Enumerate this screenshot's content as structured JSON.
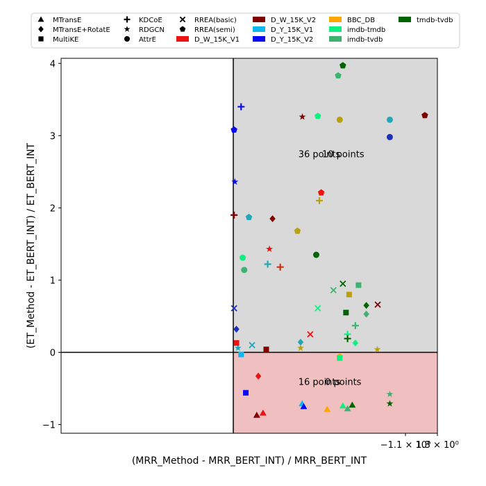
{
  "chart_data": {
    "type": "scatter",
    "title": "",
    "xlabel": "(MRR_Method - MRR_BERT_INT) / MRR_BERT_INT",
    "ylabel": "(ET_Method - ET_BERT_INT) / ET_BERT_INT",
    "xscale": "symlog",
    "xlim": [
      -1.1,
      1.3
    ],
    "ylim": [
      -1.12,
      4.07
    ],
    "x_ticks": [
      {
        "value": -1.1,
        "label": "−1.1 × 10⁰"
      },
      {
        "value": 1.3,
        "label": "1.3 × 10⁰"
      }
    ],
    "y_ticks": [
      {
        "value": -1,
        "label": "−1"
      },
      {
        "value": 0,
        "label": "0"
      },
      {
        "value": 1,
        "label": "1"
      },
      {
        "value": 2,
        "label": "2"
      },
      {
        "value": 3,
        "label": "3"
      },
      {
        "value": 4,
        "label": "4"
      }
    ],
    "grid": false,
    "legend_position": "top (above plot)",
    "quadrants": [
      {
        "label": "36 points",
        "color": "#c1e3c1",
        "x_range": [
          -1.1,
          0
        ],
        "y_range": [
          0,
          4.07
        ],
        "label_at": [
          -0.55,
          2.7
        ]
      },
      {
        "label": "10 points",
        "color": "#d9d9d9",
        "x_range": [
          0,
          1.3
        ],
        "y_range": [
          0,
          4.07
        ],
        "label_at": [
          0.7,
          2.7
        ]
      },
      {
        "label": "16 points",
        "color": "#d9d9d9",
        "x_range": [
          -1.1,
          0
        ],
        "y_range": [
          -1.12,
          0
        ],
        "label_at": [
          -0.55,
          -0.45
        ]
      },
      {
        "label": "0 points",
        "color": "#f0c0c0",
        "x_range": [
          0,
          1.3
        ],
        "y_range": [
          -1.12,
          0
        ],
        "label_at": [
          0.7,
          -0.45
        ]
      }
    ],
    "legend": {
      "markers": [
        {
          "name": "MTransE",
          "marker": "triangle"
        },
        {
          "name": "MTransE+RotatE",
          "marker": "diamond"
        },
        {
          "name": "MultiKE",
          "marker": "square"
        },
        {
          "name": "KDCoE",
          "marker": "plus"
        },
        {
          "name": "RDGCN",
          "marker": "star"
        },
        {
          "name": "AttrE",
          "marker": "circle"
        },
        {
          "name": "RREA(basic)",
          "marker": "x"
        },
        {
          "name": "RREA(semi)",
          "marker": "pentagon"
        }
      ],
      "datasets": [
        {
          "name": "D_W_15K_V1",
          "color": "#ee1111"
        },
        {
          "name": "D_W_15K_V2",
          "color": "#800000"
        },
        {
          "name": "D_Y_15K_V1",
          "color": "#11b5f0"
        },
        {
          "name": "D_Y_15K_V2",
          "color": "#0a0af0"
        },
        {
          "name": "BBC_DB",
          "color": "#ffa500"
        },
        {
          "name": "imdb-tmdb",
          "color": "#10f080"
        },
        {
          "name": "imdb-tvdb",
          "color": "#3cb371"
        },
        {
          "name": "tmdb-tvdb",
          "color": "#006400"
        }
      ]
    },
    "points": [
      {
        "x": -1.0,
        "y": 3.22,
        "marker": "circle",
        "color": "#20a8b8"
      },
      {
        "x": -1.0,
        "y": 2.98,
        "marker": "circle",
        "color": "#1a30b8"
      },
      {
        "x": -0.7,
        "y": 3.97,
        "marker": "pentagon",
        "color": "#006400"
      },
      {
        "x": -0.67,
        "y": 3.83,
        "marker": "pentagon",
        "color": "#3cb371"
      },
      {
        "x": -0.68,
        "y": 3.22,
        "marker": "circle",
        "color": "#b8a010"
      },
      {
        "x": -0.54,
        "y": 3.27,
        "marker": "pentagon",
        "color": "#10f080"
      },
      {
        "x": -0.55,
        "y": 2.1,
        "marker": "plus",
        "color": "#b8a010"
      },
      {
        "x": -0.41,
        "y": 1.68,
        "marker": "pentagon",
        "color": "#b8a010"
      },
      {
        "x": -0.53,
        "y": 1.35,
        "marker": "circle",
        "color": "#006400"
      },
      {
        "x": -0.3,
        "y": 1.18,
        "marker": "plus",
        "color": "#c83010"
      },
      {
        "x": -0.22,
        "y": 1.22,
        "marker": "plus",
        "color": "#20a8b8"
      },
      {
        "x": -0.1,
        "y": 1.87,
        "marker": "pentagon",
        "color": "#20a8b8"
      },
      {
        "x": -0.06,
        "y": 1.31,
        "marker": "circle",
        "color": "#10f080"
      },
      {
        "x": -0.07,
        "y": 1.14,
        "marker": "circle",
        "color": "#3cb371"
      },
      {
        "x": -0.05,
        "y": 3.4,
        "marker": "plus",
        "color": "#0a0af0"
      },
      {
        "x": -0.005,
        "y": 3.08,
        "marker": "pentagon",
        "color": "#0a0af0"
      },
      {
        "x": -0.01,
        "y": 2.36,
        "marker": "star",
        "color": "#0a0af0"
      },
      {
        "x": 0.005,
        "y": 1.9,
        "marker": "plus",
        "color": "#800000"
      },
      {
        "x": -0.8,
        "y": 0.93,
        "marker": "square",
        "color": "#3cb371"
      },
      {
        "x": -0.74,
        "y": 0.8,
        "marker": "square",
        "color": "#b8a010"
      },
      {
        "x": -0.7,
        "y": 0.95,
        "marker": "x",
        "color": "#006400"
      },
      {
        "x": -0.64,
        "y": 0.86,
        "marker": "x",
        "color": "#3cb371"
      },
      {
        "x": -0.85,
        "y": 0.65,
        "marker": "diamond",
        "color": "#006400"
      },
      {
        "x": -0.85,
        "y": 0.53,
        "marker": "diamond",
        "color": "#3cb371"
      },
      {
        "x": -0.72,
        "y": 0.55,
        "marker": "square",
        "color": "#006400"
      },
      {
        "x": -0.54,
        "y": 0.61,
        "marker": "x",
        "color": "#10f080"
      },
      {
        "x": -0.78,
        "y": 0.37,
        "marker": "plus",
        "color": "#3cb371"
      },
      {
        "x": -0.73,
        "y": 0.25,
        "marker": "plus",
        "color": "#10f080"
      },
      {
        "x": -0.73,
        "y": 0.19,
        "marker": "plus",
        "color": "#006400"
      },
      {
        "x": -0.78,
        "y": 0.13,
        "marker": "diamond",
        "color": "#10f080"
      },
      {
        "x": -0.92,
        "y": 0.04,
        "marker": "star",
        "color": "#b8a010"
      },
      {
        "x": -0.68,
        "y": -0.06,
        "marker": "pentagon",
        "color": "#ffa500"
      },
      {
        "x": -0.68,
        "y": -0.08,
        "marker": "square",
        "color": "#10f080"
      },
      {
        "x": -0.43,
        "y": 0.14,
        "marker": "diamond",
        "color": "#20a8b8"
      },
      {
        "x": -0.43,
        "y": 0.06,
        "marker": "star",
        "color": "#b8a010"
      },
      {
        "x": -0.12,
        "y": 0.1,
        "marker": "x",
        "color": "#20a8b8"
      },
      {
        "x": -0.03,
        "y": 0.06,
        "marker": "star",
        "color": "#20a8b8"
      },
      {
        "x": -0.05,
        "y": -0.03,
        "marker": "square",
        "color": "#11b5f0"
      },
      {
        "x": -0.02,
        "y": 0.32,
        "marker": "diamond",
        "color": "#1a30b8"
      },
      {
        "x": -0.005,
        "y": 0.61,
        "marker": "x",
        "color": "#1a30b8"
      },
      {
        "x": 0.02,
        "y": 0.13,
        "marker": "square",
        "color": "#ee1111"
      },
      {
        "x": 0.21,
        "y": 0.04,
        "marker": "square",
        "color": "#800000"
      },
      {
        "x": 0.25,
        "y": 1.85,
        "marker": "diamond",
        "color": "#800000"
      },
      {
        "x": 0.23,
        "y": 1.43,
        "marker": "star",
        "color": "#ee1111"
      },
      {
        "x": 0.44,
        "y": 3.26,
        "marker": "star",
        "color": "#800000"
      },
      {
        "x": 0.56,
        "y": 2.21,
        "marker": "pentagon",
        "color": "#ee1111"
      },
      {
        "x": 1.22,
        "y": 3.28,
        "marker": "pentagon",
        "color": "#800000"
      },
      {
        "x": 0.49,
        "y": 0.25,
        "marker": "x",
        "color": "#ee1111"
      },
      {
        "x": 0.92,
        "y": 0.66,
        "marker": "x",
        "color": "#800000"
      },
      {
        "x": -1.0,
        "y": -0.58,
        "marker": "star",
        "color": "#3cb371"
      },
      {
        "x": -1.0,
        "y": -0.71,
        "marker": "star",
        "color": "#006400"
      },
      {
        "x": -0.76,
        "y": -0.73,
        "marker": "triangle",
        "color": "#006400"
      },
      {
        "x": -0.73,
        "y": -0.78,
        "marker": "triangle",
        "color": "#3cb371"
      },
      {
        "x": -0.7,
        "y": -0.74,
        "marker": "triangle",
        "color": "#10f080"
      },
      {
        "x": -0.6,
        "y": -0.79,
        "marker": "triangle",
        "color": "#ffa500"
      },
      {
        "x": -0.44,
        "y": -0.71,
        "marker": "triangle",
        "color": "#11b5f0"
      },
      {
        "x": -0.45,
        "y": -0.75,
        "marker": "triangle",
        "color": "#0a0af0"
      },
      {
        "x": -0.16,
        "y": -0.33,
        "marker": "diamond",
        "color": "#ee1111"
      },
      {
        "x": -0.08,
        "y": -0.56,
        "marker": "square",
        "color": "#0a0af0"
      },
      {
        "x": -0.19,
        "y": -0.84,
        "marker": "triangle",
        "color": "#ee1111"
      },
      {
        "x": -0.15,
        "y": -0.87,
        "marker": "triangle",
        "color": "#800000"
      }
    ]
  }
}
